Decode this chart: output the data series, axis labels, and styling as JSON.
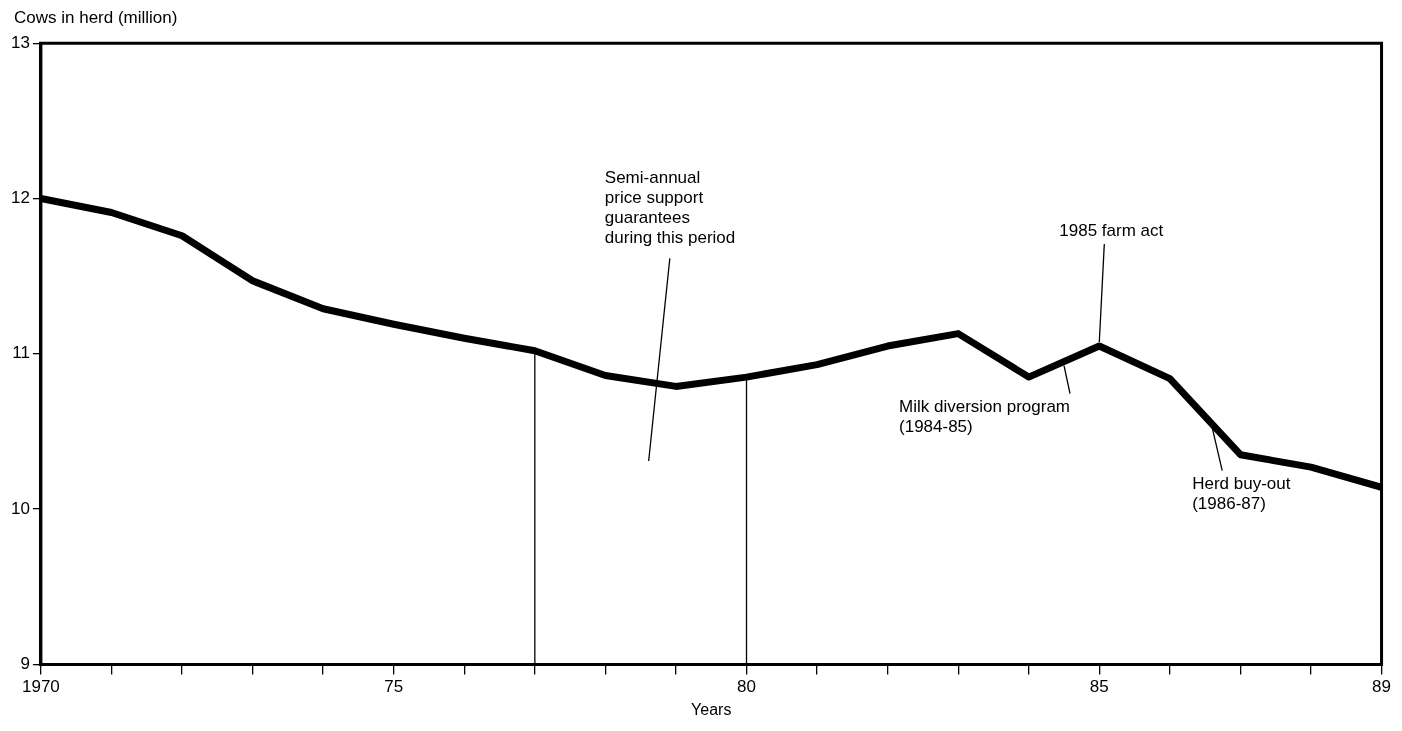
{
  "chart_data": {
    "type": "line",
    "ylabel": "Cows in  herd (million)",
    "xlabel": "Years",
    "x": [
      1970,
      1971,
      1972,
      1973,
      1974,
      1975,
      1976,
      1977,
      1978,
      1979,
      1980,
      1981,
      1982,
      1983,
      1984,
      1985,
      1986,
      1987,
      1988,
      1989
    ],
    "series": [
      {
        "color": "#000000",
        "values": [
          12.0,
          11.91,
          11.76,
          11.47,
          11.29,
          11.19,
          11.1,
          11.02,
          10.86,
          10.79,
          10.85,
          10.93,
          11.05,
          11.13,
          10.85,
          11.05,
          10.84,
          10.35,
          10.27,
          10.14
        ]
      }
    ],
    "xlim": [
      1970,
      1989
    ],
    "xticks": [
      {
        "value": 1970,
        "label": "1970"
      },
      {
        "value": 1971,
        "label": null
      },
      {
        "value": 1972,
        "label": null
      },
      {
        "value": 1973,
        "label": null
      },
      {
        "value": 1974,
        "label": null
      },
      {
        "value": 1975,
        "label": "75"
      },
      {
        "value": 1976,
        "label": null
      },
      {
        "value": 1977,
        "label": null
      },
      {
        "value": 1978,
        "label": null
      },
      {
        "value": 1979,
        "label": null
      },
      {
        "value": 1980,
        "label": "80"
      },
      {
        "value": 1981,
        "label": null
      },
      {
        "value": 1982,
        "label": null
      },
      {
        "value": 1983,
        "label": null
      },
      {
        "value": 1984,
        "label": null
      },
      {
        "value": 1985,
        "label": "85"
      },
      {
        "value": 1986,
        "label": null
      },
      {
        "value": 1987,
        "label": null
      },
      {
        "value": 1988,
        "label": null
      },
      {
        "value": 1989,
        "label": "89"
      }
    ],
    "ylim": [
      9,
      13
    ],
    "yticks": [
      9,
      10,
      11,
      12,
      13
    ],
    "grid": false,
    "legend": false,
    "marker": "none",
    "line_style": "solid",
    "ref_lines": [
      {
        "axis": "x",
        "value": 1977
      },
      {
        "axis": "x",
        "value": 1980
      }
    ],
    "annotations": [
      {
        "text": "1985 farm act",
        "x": 1985,
        "y": 11.05
      },
      "Semi-annual\nprice support\nguarantees\nduring this period",
      {
        "text": "Milk diversion program\n(1984-85)",
        "x": 1984.5,
        "y": 10.95
      },
      {
        "text": "Herd buy-out\n(1986-87)",
        "x": 1986.6,
        "y": 10.55
      }
    ]
  }
}
